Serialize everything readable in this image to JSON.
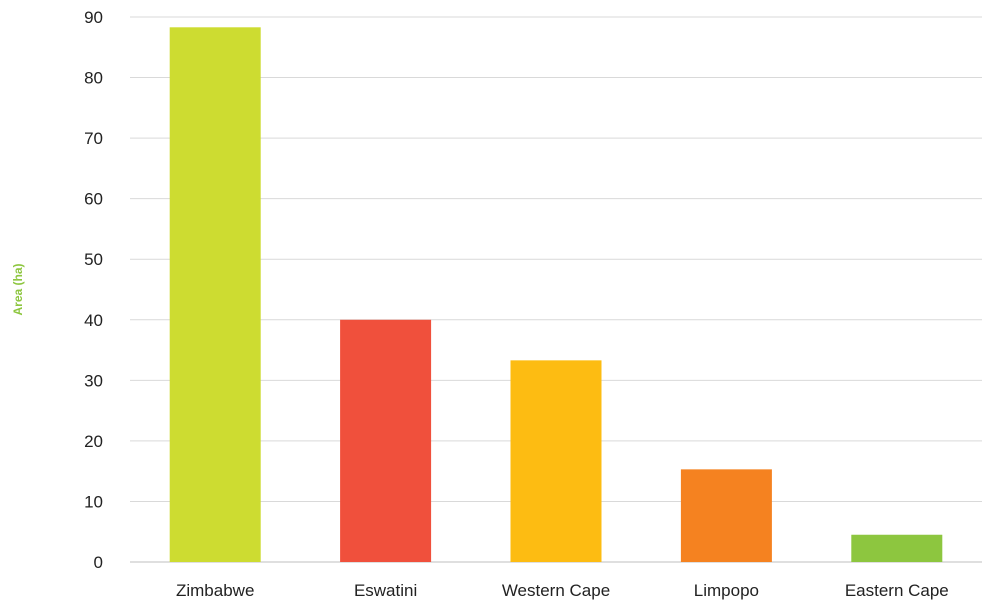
{
  "chart_data": {
    "type": "bar",
    "title": "",
    "xlabel": "",
    "ylabel": "Area (ha)",
    "ylabel_color": "#8dc63f",
    "categories": [
      "Zimbabwe",
      "Eswatini",
      "Western Cape",
      "Limpopo",
      "Eastern Cape"
    ],
    "values": [
      88.3,
      40.0,
      33.3,
      15.3,
      4.5
    ],
    "bar_colors": [
      "#cddc31",
      "#f0503c",
      "#fdbc12",
      "#f58220",
      "#8dc63f"
    ],
    "ylim": [
      0,
      90
    ],
    "yticks": [
      0,
      10,
      20,
      30,
      40,
      50,
      60,
      70,
      80,
      90
    ],
    "grid": true,
    "legend": "none"
  }
}
